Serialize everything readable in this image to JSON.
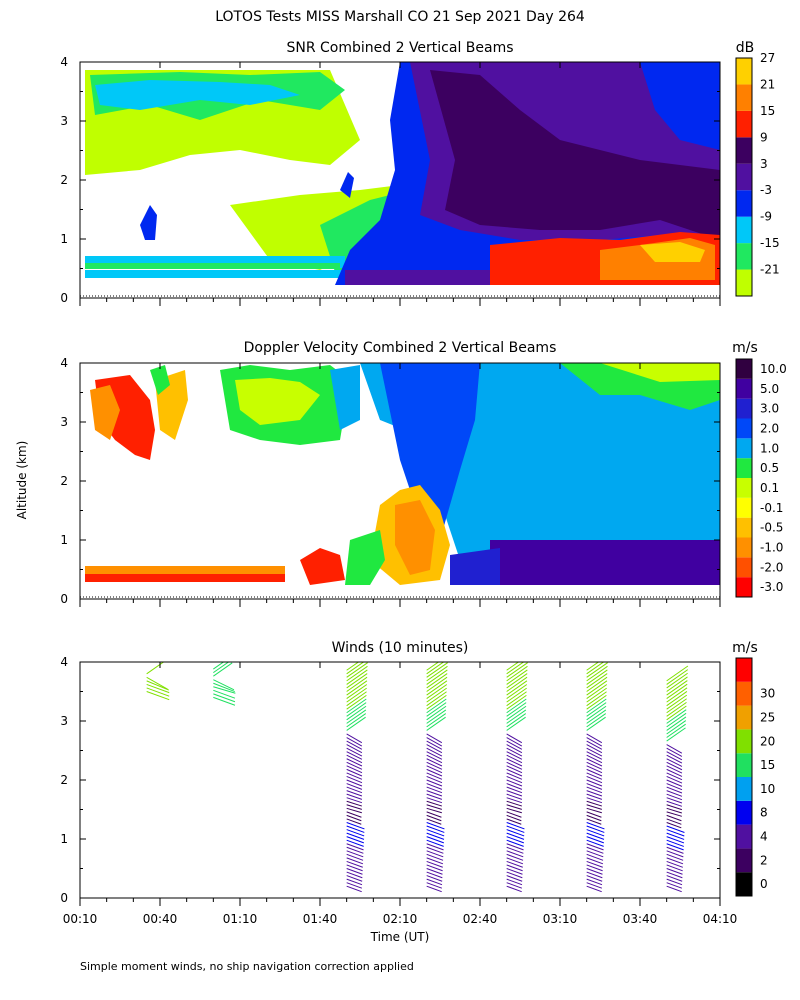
{
  "figure": {
    "title": "LOTOS Tests MISS Marshall CO  21 Sep 2021 Day 264",
    "ylabel": "Altitude (km)",
    "xlabel": "Time (UT)",
    "footnote": "Simple moment winds, no ship navigation correction applied"
  },
  "chart_data": [
    {
      "type": "heatmap",
      "title": "SNR Combined 2 Vertical Beams",
      "x_range": [
        "00:10",
        "04:10"
      ],
      "ylim": [
        0,
        4
      ],
      "y_ticks": [
        "0",
        "1",
        "2",
        "3",
        "4"
      ],
      "colorbar": {
        "unit": "dB",
        "colors": [
          "#c0ff00",
          "#20e860",
          "#00c8f8",
          "#0028f0",
          "#5010a0",
          "#3c0060",
          "#ff2000",
          "#ff8000",
          "#ffd000"
        ],
        "tick_labels": [
          "-21",
          "-15",
          "-9",
          "-3",
          "3",
          "9",
          "15",
          "21",
          "27"
        ]
      },
      "features": [
        {
          "t0": "00:10",
          "t1": "01:50",
          "alt": [
            0.25,
            0.6
          ],
          "level": "-15 to -9"
        },
        {
          "t0": "00:10",
          "t1": "01:30",
          "alt": [
            2.5,
            3.9
          ],
          "level": "-21 to -9"
        },
        {
          "t0": "01:50",
          "t1": "04:10",
          "alt": [
            1.2,
            3.9
          ],
          "level": "-3 to 9"
        },
        {
          "t0": "02:45",
          "t1": "04:10",
          "alt": [
            0.3,
            1.0
          ],
          "level": "15 to 21"
        }
      ]
    },
    {
      "type": "heatmap",
      "title": "Doppler Velocity Combined 2 Vertical Beams",
      "x_range": [
        "00:10",
        "04:10"
      ],
      "ylim": [
        0,
        4
      ],
      "y_ticks": [
        "0",
        "1",
        "2",
        "3",
        "4"
      ],
      "colorbar": {
        "unit": "m/s",
        "colors": [
          "#ff0000",
          "#ff5000",
          "#ff9000",
          "#ffc000",
          "#ffff00",
          "#c8ff00",
          "#20e840",
          "#00a8f0",
          "#0048f8",
          "#2020d0",
          "#4000a0",
          "#300040"
        ],
        "tick_labels": [
          "-3.0",
          "-2.0",
          "-1.0",
          "-0.5",
          "-0.1",
          "0.1",
          "0.5",
          "1.0",
          "2.0",
          "3.0",
          "5.0",
          "10.0"
        ]
      },
      "features": [
        {
          "t0": "00:10",
          "t1": "00:50",
          "alt": [
            2.2,
            3.8
          ],
          "level": "-3.0 to -0.5"
        },
        {
          "t0": "01:50",
          "t1": "02:30",
          "alt": [
            0.3,
            1.8
          ],
          "level": "-1.0 to 0.5"
        },
        {
          "t0": "02:40",
          "t1": "04:10",
          "alt": [
            1.0,
            3.8
          ],
          "level": "1.0 to 2.0"
        },
        {
          "t0": "02:40",
          "t1": "04:10",
          "alt": [
            0.25,
            0.9
          ],
          "level": "3.0 to 5.0"
        }
      ]
    },
    {
      "type": "scatter",
      "title": "Winds (10 minutes)",
      "x_range": [
        "00:10",
        "04:10"
      ],
      "x_ticks": [
        "00:10",
        "00:40",
        "01:10",
        "01:40",
        "02:10",
        "02:40",
        "03:10",
        "03:40",
        "04:10"
      ],
      "ylim": [
        0,
        4
      ],
      "y_ticks": [
        "0",
        "1",
        "2",
        "3",
        "4"
      ],
      "colorbar": {
        "unit": "m/s",
        "colors": [
          "#000000",
          "#3c0060",
          "#5010a0",
          "#0000f0",
          "#00a0f0",
          "#20e060",
          "#80e000",
          "#f0a000",
          "#ff6000",
          "#ff0000"
        ],
        "tick_labels": [
          "0",
          "2",
          "4",
          "8",
          "10",
          "15",
          "20",
          "25",
          "30"
        ]
      },
      "profiles": [
        {
          "time": "00:35",
          "alt": [
            3.5,
            3.85
          ],
          "speed": 20
        },
        {
          "time": "01:00",
          "alt": [
            3.4,
            3.9
          ],
          "speed": 18
        },
        {
          "time": "01:50",
          "alt": [
            0.2,
            3.9
          ],
          "speed": 12
        },
        {
          "time": "02:20",
          "alt": [
            0.2,
            3.9
          ],
          "speed": 10
        },
        {
          "time": "02:50",
          "alt": [
            0.2,
            3.9
          ],
          "speed": 10
        },
        {
          "time": "03:20",
          "alt": [
            0.2,
            3.9
          ],
          "speed": 10
        },
        {
          "time": "03:50",
          "alt": [
            0.2,
            3.7
          ],
          "speed": 8
        }
      ]
    }
  ]
}
